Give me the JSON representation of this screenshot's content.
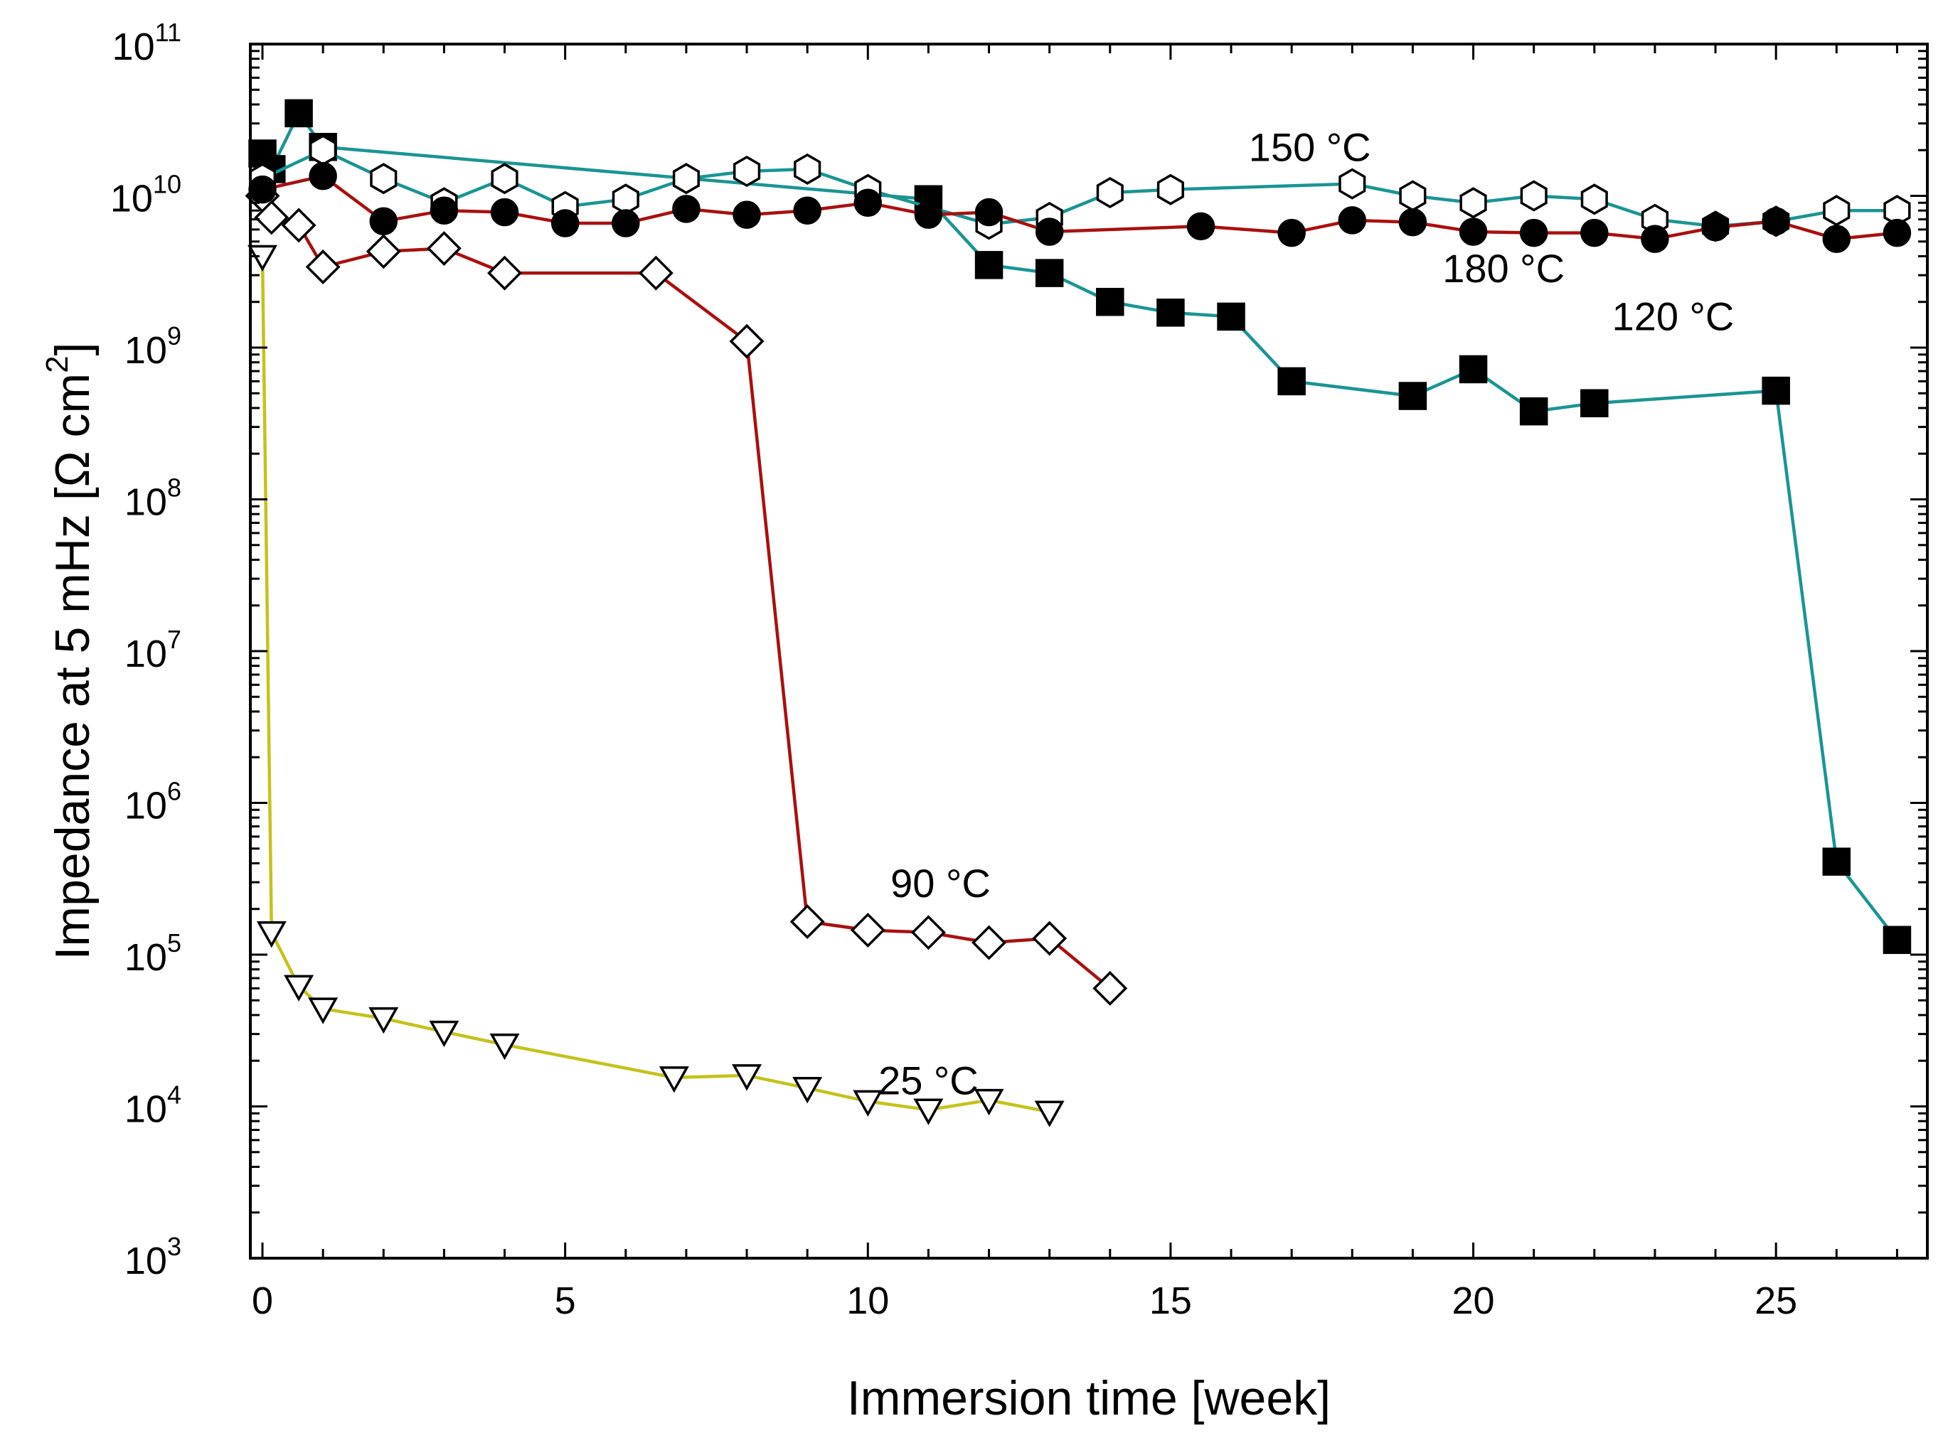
{
  "chart_data": {
    "type": "line",
    "title": "",
    "xlabel": "Immersion time [week]",
    "ylabel": "Impedance at 5 mHz [Ω cm²]",
    "ylabel_main": "Impedance at 5 mHz [Ω cm",
    "ylabel_sup": "2",
    "ylabel_close": "]",
    "yscale": "log",
    "xlim": [
      -0.2,
      27.5
    ],
    "ylim": [
      1000,
      100000000000
    ],
    "xticks": [
      0,
      5,
      10,
      15,
      20,
      25
    ],
    "xtick_labels": [
      "0",
      "5",
      "10",
      "15",
      "20",
      "25"
    ],
    "yticks": [
      {
        "exp": 3,
        "base": "10",
        "sup": "3"
      },
      {
        "exp": 4,
        "base": "10",
        "sup": "4"
      },
      {
        "exp": 5,
        "base": "10",
        "sup": "5"
      },
      {
        "exp": 6,
        "base": "10",
        "sup": "6"
      },
      {
        "exp": 7,
        "base": "10",
        "sup": "7"
      },
      {
        "exp": 8,
        "base": "10",
        "sup": "8"
      },
      {
        "exp": 9,
        "base": "10",
        "sup": "9"
      },
      {
        "exp": 10,
        "base": "10",
        "sup": "10"
      },
      {
        "exp": 11,
        "base": "10",
        "sup": "11"
      }
    ],
    "grid": false,
    "series": [
      {
        "name": "25 °C",
        "label": "25 °C",
        "marker": "triangle-down-open",
        "color": "#c4c21b",
        "label_at": [
          11,
          12000
        ],
        "x": [
          0,
          0.15,
          0.6,
          1,
          2,
          3,
          4,
          6.8,
          8,
          9,
          10,
          11,
          12,
          13
        ],
        "y": [
          4000000000,
          140000,
          62000,
          44000,
          38000,
          31000,
          25500,
          15500,
          16000,
          13200,
          10800,
          9500,
          11000,
          9200
        ]
      },
      {
        "name": "90 °C",
        "label": "90 °C",
        "marker": "diamond-open",
        "color": "#aa0f0f",
        "label_at": [
          11.2,
          240000
        ],
        "x": [
          0,
          0.15,
          0.6,
          1,
          2,
          3,
          4,
          6.5,
          8,
          9,
          10,
          11,
          12,
          13,
          14
        ],
        "y": [
          10000000000,
          7200000000,
          6400000000,
          3400000000,
          4300000000,
          4500000000,
          3100000000,
          3100000000,
          1100000000,
          165000,
          145000,
          140000,
          120000,
          128000,
          60000
        ]
      },
      {
        "name": "120 °C",
        "label": "120 °C",
        "marker": "square-filled",
        "color": "#1a9494",
        "label_at": [
          23.3,
          1300000000
        ],
        "x": [
          0,
          0.15,
          0.6,
          1,
          11,
          12,
          13,
          14,
          15,
          16,
          17,
          19,
          20,
          21,
          22,
          25,
          26,
          27
        ],
        "y": [
          19000000000,
          15000000000,
          35000000000,
          21000000000,
          9500000000,
          3500000000,
          3100000000,
          2000000000,
          1700000000,
          1600000000,
          600000000,
          480000000,
          720000000,
          380000000,
          430000000,
          520000000,
          410000,
          125000
        ]
      },
      {
        "name": "150 °C",
        "label": "150 °C",
        "marker": "hexagon-open",
        "color": "#1a9494",
        "label_at": [
          17.3,
          17000000000
        ],
        "x": [
          0,
          1,
          2,
          3,
          4,
          5,
          6,
          7,
          8,
          9,
          10,
          12,
          13,
          14,
          15,
          18,
          19,
          20,
          21,
          22,
          23,
          24,
          25,
          26,
          27
        ],
        "y": [
          13000000000,
          20000000000,
          13000000000,
          9000000000,
          13000000000,
          8500000000,
          9500000000,
          13000000000,
          14500000000,
          15000000000,
          11000000000,
          6500000000,
          7200000000,
          10500000000,
          11000000000,
          12000000000,
          10000000000,
          9000000000,
          10000000000,
          9500000000,
          7000000000,
          6300000000,
          6800000000,
          8000000000,
          8000000000
        ]
      },
      {
        "name": "180 °C",
        "label": "180 °C",
        "marker": "circle-filled",
        "color": "#aa0f0f",
        "label_at": [
          20.5,
          2700000000
        ],
        "x": [
          0,
          1,
          2,
          3,
          4,
          5,
          6,
          7,
          8,
          9,
          10,
          11,
          12,
          13,
          15.5,
          17,
          18,
          19,
          20,
          21,
          22,
          23,
          24,
          25,
          26,
          27
        ],
        "y": [
          11000000000,
          13500000000,
          6800000000,
          8000000000,
          7800000000,
          6600000000,
          6600000000,
          8200000000,
          7500000000,
          8000000000,
          9000000000,
          7500000000,
          7800000000,
          5800000000,
          6300000000,
          5700000000,
          6900000000,
          6700000000,
          5800000000,
          5700000000,
          5700000000,
          5200000000,
          6200000000,
          6800000000,
          5200000000,
          5700000000
        ]
      }
    ]
  }
}
